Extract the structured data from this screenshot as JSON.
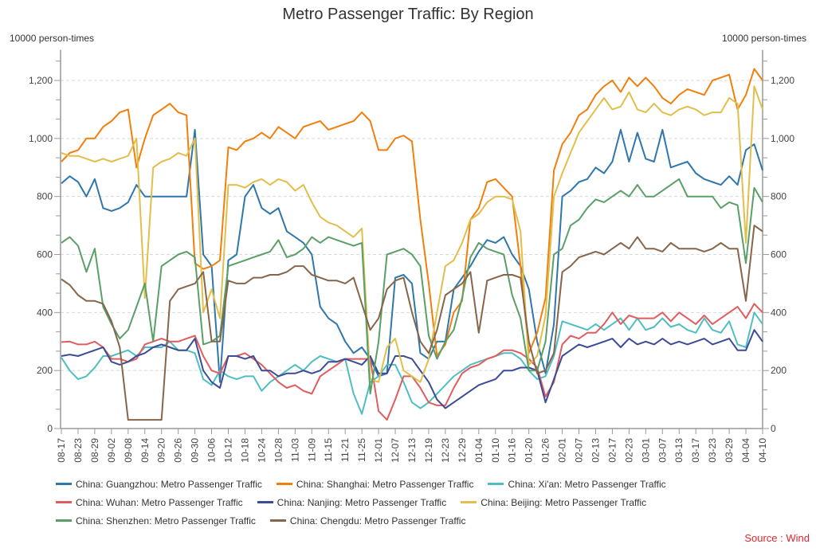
{
  "chart_data": {
    "type": "line",
    "title": "Metro Passenger Traffic: By Region",
    "ylabel_left": "10000 person-times",
    "ylabel_right": "10000 person-times",
    "ylim": [
      0,
      1300
    ],
    "yticks": [
      0,
      200,
      400,
      600,
      800,
      1000,
      1200
    ],
    "ytick_labels": [
      "0",
      "200",
      "400",
      "600",
      "800",
      "1,000",
      "1,200"
    ],
    "grid": true,
    "legend_position": "bottom",
    "x_tick_labels": [
      "08-17",
      "08-23",
      "08-29",
      "09-02",
      "09-08",
      "09-14",
      "09-20",
      "09-26",
      "09-30",
      "10-06",
      "10-12",
      "10-18",
      "10-24",
      "10-28",
      "11-03",
      "11-09",
      "11-15",
      "11-21",
      "11-25",
      "12-01",
      "12-07",
      "12-13",
      "12-19",
      "12-23",
      "12-29",
      "01-04",
      "01-10",
      "01-16",
      "01-20",
      "01-26",
      "02-01",
      "02-07",
      "02-13",
      "02-17",
      "02-23",
      "03-01",
      "03-07",
      "03-13",
      "03-17",
      "03-23",
      "03-29",
      "04-04",
      "04-10"
    ],
    "points_per_tick": 2,
    "series": [
      {
        "name": "China: Guangzhou: Metro Passenger Traffic",
        "color": "#2f77ab",
        "values": [
          845,
          870,
          850,
          800,
          860,
          760,
          750,
          760,
          780,
          840,
          800,
          800,
          800,
          800,
          800,
          800,
          1030,
          600,
          560,
          160,
          580,
          600,
          800,
          840,
          760,
          740,
          760,
          680,
          660,
          640,
          600,
          420,
          380,
          360,
          300,
          260,
          280,
          240,
          180,
          190,
          520,
          530,
          500,
          260,
          240,
          300,
          300,
          480,
          520,
          560,
          610,
          650,
          640,
          660,
          600,
          560,
          480,
          300,
          190,
          360,
          800,
          820,
          850,
          860,
          900,
          880,
          920,
          1030,
          920,
          1020,
          930,
          920,
          1030,
          900,
          910,
          920,
          880,
          860,
          850,
          840,
          870,
          840,
          960,
          980,
          890
        ]
      },
      {
        "name": "China: Shanghai: Metro Passenger Traffic",
        "color": "#f07f0d",
        "values": [
          920,
          950,
          960,
          1000,
          1000,
          1040,
          1060,
          1090,
          1100,
          900,
          1000,
          1080,
          1100,
          1120,
          1090,
          1080,
          570,
          550,
          560,
          580,
          970,
          960,
          990,
          1000,
          1020,
          1000,
          1040,
          1020,
          1000,
          1040,
          1050,
          1060,
          1030,
          1040,
          1050,
          1060,
          1090,
          1060,
          960,
          960,
          1000,
          1010,
          990,
          720,
          500,
          250,
          290,
          400,
          440,
          720,
          760,
          850,
          860,
          830,
          800,
          560,
          260,
          330,
          450,
          890,
          980,
          1020,
          1080,
          1100,
          1150,
          1180,
          1200,
          1160,
          1210,
          1180,
          1210,
          1180,
          1140,
          1120,
          1150,
          1170,
          1160,
          1150,
          1200,
          1210,
          1220,
          1100,
          1150,
          1240,
          1200
        ]
      },
      {
        "name": "China: Xi'an: Metro Passenger Traffic",
        "color": "#4fbec0",
        "values": [
          245,
          200,
          170,
          180,
          210,
          250,
          250,
          260,
          270,
          250,
          280,
          280,
          280,
          300,
          270,
          270,
          260,
          170,
          150,
          200,
          180,
          170,
          180,
          180,
          130,
          160,
          180,
          200,
          220,
          200,
          230,
          250,
          240,
          230,
          240,
          120,
          50,
          160,
          180,
          220,
          220,
          160,
          90,
          70,
          90,
          120,
          150,
          180,
          200,
          220,
          230,
          240,
          250,
          260,
          260,
          240,
          200,
          170,
          180,
          250,
          370,
          360,
          350,
          340,
          360,
          340,
          360,
          380,
          340,
          380,
          340,
          350,
          380,
          350,
          360,
          340,
          330,
          380,
          340,
          330,
          370,
          290,
          280,
          400,
          360
        ]
      },
      {
        "name": "China: Wuhan: Metro Passenger Traffic",
        "color": "#e05c5e",
        "values": [
          298,
          300,
          290,
          290,
          300,
          280,
          240,
          240,
          230,
          240,
          290,
          300,
          310,
          300,
          300,
          310,
          320,
          250,
          200,
          190,
          250,
          250,
          260,
          240,
          220,
          190,
          160,
          140,
          150,
          130,
          120,
          180,
          200,
          220,
          240,
          240,
          240,
          240,
          60,
          30,
          100,
          180,
          180,
          140,
          90,
          80,
          80,
          140,
          190,
          210,
          220,
          240,
          250,
          270,
          270,
          260,
          240,
          210,
          110,
          160,
          290,
          320,
          310,
          330,
          330,
          360,
          400,
          360,
          390,
          380,
          380,
          380,
          400,
          370,
          400,
          380,
          360,
          390,
          360,
          380,
          400,
          420,
          380,
          430,
          400
        ]
      },
      {
        "name": "China: Nanjing: Metro Passenger Traffic",
        "color": "#3c4b96",
        "values": [
          250,
          255,
          250,
          260,
          270,
          280,
          230,
          220,
          230,
          250,
          260,
          280,
          290,
          280,
          270,
          270,
          310,
          200,
          160,
          140,
          250,
          250,
          240,
          250,
          200,
          200,
          180,
          190,
          190,
          200,
          190,
          200,
          230,
          230,
          240,
          230,
          220,
          250,
          190,
          190,
          250,
          250,
          240,
          200,
          160,
          100,
          70,
          90,
          110,
          130,
          150,
          160,
          170,
          200,
          200,
          210,
          210,
          200,
          90,
          170,
          250,
          270,
          290,
          280,
          290,
          300,
          310,
          280,
          310,
          290,
          300,
          290,
          310,
          290,
          300,
          290,
          300,
          310,
          290,
          300,
          310,
          270,
          270,
          340,
          300
        ]
      },
      {
        "name": "China: Beijing: Metro Passenger Traffic",
        "color": "#e2be4b",
        "values": [
          950,
          940,
          940,
          930,
          920,
          930,
          920,
          930,
          940,
          1000,
          450,
          900,
          920,
          930,
          950,
          940,
          1000,
          400,
          480,
          380,
          840,
          840,
          830,
          850,
          860,
          840,
          860,
          850,
          820,
          840,
          780,
          730,
          710,
          700,
          680,
          660,
          690,
          170,
          160,
          280,
          310,
          200,
          180,
          160,
          240,
          400,
          560,
          580,
          640,
          720,
          740,
          780,
          800,
          800,
          790,
          680,
          220,
          250,
          390,
          800,
          880,
          950,
          1020,
          1060,
          1100,
          1140,
          1100,
          1110,
          1160,
          1100,
          1090,
          1120,
          1090,
          1080,
          1100,
          1110,
          1100,
          1080,
          1090,
          1090,
          1140,
          1120,
          640,
          1180,
          1100
        ]
      },
      {
        "name": "China: Shenzhen: Metro Passenger Traffic",
        "color": "#5a9f68",
        "values": [
          640,
          660,
          630,
          540,
          620,
          420,
          360,
          310,
          340,
          420,
          500,
          300,
          560,
          580,
          600,
          610,
          590,
          290,
          300,
          320,
          560,
          570,
          580,
          590,
          600,
          610,
          650,
          590,
          600,
          620,
          660,
          640,
          660,
          650,
          640,
          630,
          640,
          120,
          300,
          600,
          610,
          620,
          600,
          560,
          320,
          240,
          300,
          340,
          450,
          590,
          640,
          620,
          610,
          600,
          460,
          380,
          200,
          200,
          300,
          600,
          620,
          700,
          720,
          760,
          790,
          780,
          800,
          820,
          800,
          840,
          800,
          800,
          820,
          840,
          860,
          800,
          800,
          800,
          800,
          760,
          780,
          770,
          570,
          830,
          780
        ]
      },
      {
        "name": "China: Chengdu: Metro Passenger Traffic",
        "color": "#86654b",
        "values": [
          515,
          495,
          460,
          440,
          440,
          430,
          370,
          280,
          30,
          30,
          30,
          30,
          30,
          440,
          480,
          490,
          500,
          540,
          300,
          300,
          510,
          500,
          500,
          520,
          520,
          530,
          530,
          540,
          560,
          560,
          530,
          520,
          510,
          510,
          500,
          520,
          430,
          340,
          380,
          480,
          510,
          520,
          400,
          300,
          260,
          340,
          460,
          480,
          500,
          540,
          330,
          510,
          520,
          530,
          530,
          520,
          300,
          190,
          200,
          260,
          540,
          560,
          590,
          600,
          610,
          600,
          620,
          640,
          620,
          660,
          620,
          620,
          610,
          640,
          620,
          620,
          620,
          610,
          620,
          640,
          620,
          620,
          440,
          700,
          680
        ]
      }
    ]
  },
  "legend": {
    "items": [
      "China: Guangzhou: Metro Passenger Traffic",
      "China: Shanghai: Metro Passenger Traffic",
      "China: Xi'an: Metro Passenger Traffic",
      "China: Wuhan: Metro Passenger Traffic",
      "China: Nanjing: Metro Passenger Traffic",
      "China: Beijing: Metro Passenger Traffic",
      "China: Shenzhen: Metro Passenger Traffic",
      "China: Chengdu: Metro Passenger Traffic"
    ]
  },
  "source": "Source : Wind"
}
